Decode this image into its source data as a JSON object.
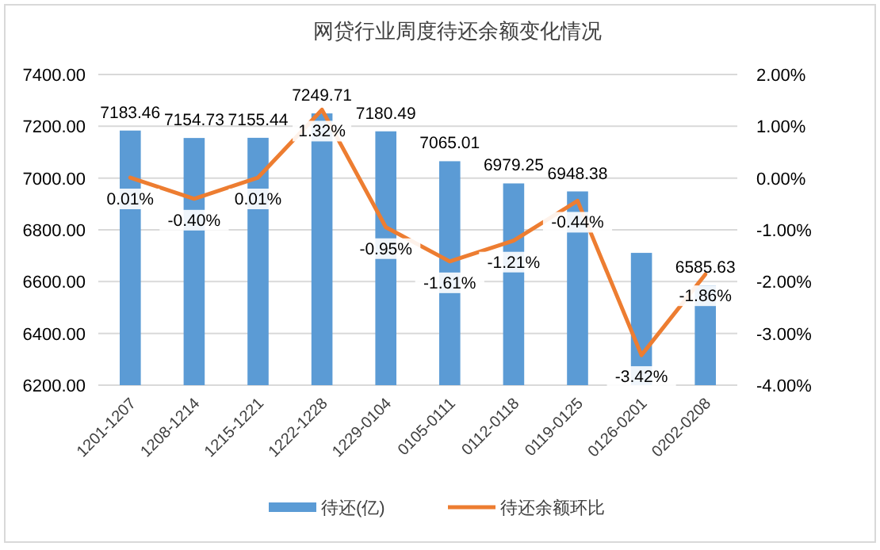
{
  "chart_data": {
    "type": "bar",
    "title": "网贷行业周度待还余额变化情况",
    "categories": [
      "1201-1207",
      "1208-1214",
      "1215-1221",
      "1222-1228",
      "1229-0104",
      "0105-0111",
      "0112-0118",
      "0119-0125",
      "0126-0201",
      "0202-0208"
    ],
    "series": [
      {
        "name": "待还(亿)",
        "color": "#5b9bd5",
        "values": [
          7183.46,
          7154.73,
          7155.44,
          7249.71,
          7180.49,
          7065.01,
          6979.25,
          6948.38,
          6711,
          6585.63
        ],
        "value_labels": [
          "7183.46",
          "7154.73",
          "7155.44",
          "7249.71",
          "7180.49",
          "7065.01",
          "6979.25",
          "6948.38",
          null,
          "6585.63"
        ]
      },
      {
        "name": "待还余额环比",
        "type": "line",
        "axis": "y2",
        "color": "#ed7d31",
        "values": [
          0.01,
          -0.4,
          0.01,
          1.32,
          -0.95,
          -1.61,
          -1.21,
          -0.44,
          -3.42,
          -1.86
        ],
        "value_labels": [
          "0.01%",
          "-0.40%",
          "0.01%",
          "1.32%",
          "-0.95%",
          "-1.61%",
          "-1.21%",
          "-0.44%",
          "-3.42%",
          "-1.86%"
        ]
      }
    ],
    "ylim": [
      6200,
      7400
    ],
    "yticks": [
      {
        "value": 6200,
        "label": "6200.00"
      },
      {
        "value": 6400,
        "label": "6400.00"
      },
      {
        "value": 6600,
        "label": "6600.00"
      },
      {
        "value": 6800,
        "label": "6800.00"
      },
      {
        "value": 7000,
        "label": "7000.00"
      },
      {
        "value": 7200,
        "label": "7200.00"
      },
      {
        "value": 7400,
        "label": "7400.00"
      }
    ],
    "y2lim": [
      -4,
      2
    ],
    "y2ticks": [
      {
        "value": -4,
        "label": "-4.00%"
      },
      {
        "value": -3,
        "label": "-3.00%"
      },
      {
        "value": -2,
        "label": "-2.00%"
      },
      {
        "value": -1,
        "label": "-1.00%"
      },
      {
        "value": 0,
        "label": "0.00%"
      },
      {
        "value": 1,
        "label": "1.00%"
      },
      {
        "value": 2,
        "label": "2.00%"
      }
    ],
    "grid": "y",
    "legend": "bottom"
  }
}
